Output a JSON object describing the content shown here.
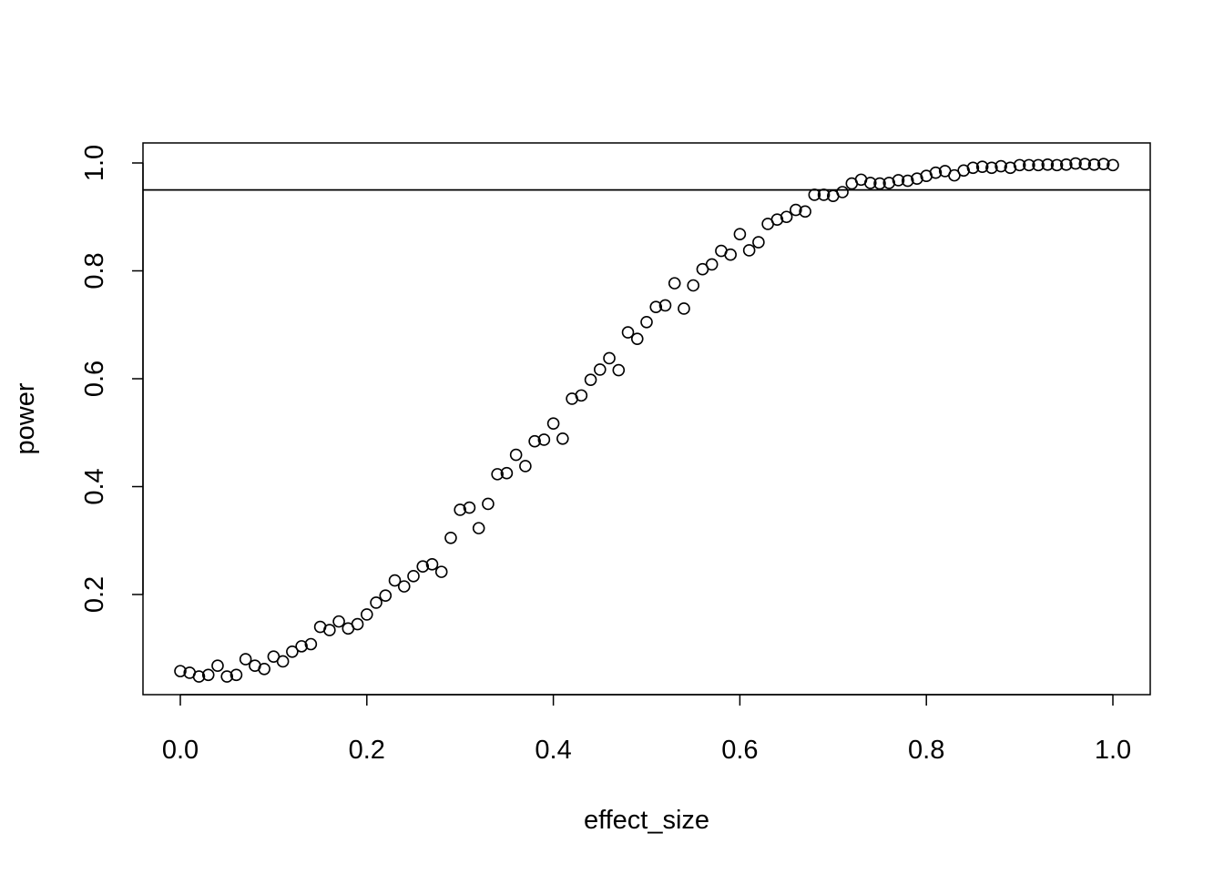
{
  "chart_data": {
    "type": "scatter",
    "title": "",
    "xlabel": "effect_size",
    "ylabel": "power",
    "xlim": [
      0.0,
      1.0
    ],
    "ylim": [
      0.0,
      1.0
    ],
    "x_ticks": [
      "0.0",
      "0.2",
      "0.4",
      "0.6",
      "0.8",
      "1.0"
    ],
    "y_ticks": [
      "0.2",
      "0.4",
      "0.6",
      "0.8",
      "1.0"
    ],
    "grid": false,
    "legend": "none",
    "marker": "open-circle",
    "reference_line": {
      "orientation": "horizontal",
      "y": 0.95
    },
    "x": [
      0.0,
      0.01,
      0.02,
      0.03,
      0.04,
      0.05,
      0.06,
      0.07,
      0.08,
      0.09,
      0.1,
      0.11,
      0.12,
      0.13,
      0.14,
      0.15,
      0.16,
      0.17,
      0.18,
      0.19,
      0.2,
      0.21,
      0.22,
      0.23,
      0.24,
      0.25,
      0.26,
      0.27,
      0.28,
      0.29,
      0.3,
      0.31,
      0.32,
      0.33,
      0.34,
      0.35,
      0.36,
      0.37,
      0.38,
      0.39,
      0.4,
      0.41,
      0.42,
      0.43,
      0.44,
      0.45,
      0.46,
      0.47,
      0.48,
      0.49,
      0.5,
      0.51,
      0.52,
      0.53,
      0.54,
      0.55,
      0.56,
      0.57,
      0.58,
      0.59,
      0.6,
      0.61,
      0.62,
      0.63,
      0.64,
      0.65,
      0.66,
      0.67,
      0.68,
      0.69,
      0.7,
      0.71,
      0.72,
      0.73,
      0.74,
      0.75,
      0.76,
      0.77,
      0.78,
      0.79,
      0.8,
      0.81,
      0.82,
      0.83,
      0.84,
      0.85,
      0.86,
      0.87,
      0.88,
      0.89,
      0.9,
      0.91,
      0.92,
      0.93,
      0.94,
      0.95,
      0.96,
      0.97,
      0.98,
      0.99,
      1.0
    ],
    "y": [
      0.058,
      0.055,
      0.048,
      0.051,
      0.068,
      0.048,
      0.051,
      0.08,
      0.068,
      0.062,
      0.085,
      0.076,
      0.094,
      0.104,
      0.108,
      0.14,
      0.134,
      0.15,
      0.137,
      0.145,
      0.163,
      0.185,
      0.198,
      0.226,
      0.215,
      0.234,
      0.252,
      0.256,
      0.242,
      0.305,
      0.357,
      0.361,
      0.323,
      0.368,
      0.423,
      0.425,
      0.459,
      0.438,
      0.484,
      0.487,
      0.517,
      0.489,
      0.563,
      0.569,
      0.598,
      0.617,
      0.638,
      0.616,
      0.686,
      0.674,
      0.705,
      0.733,
      0.736,
      0.777,
      0.73,
      0.773,
      0.803,
      0.812,
      0.837,
      0.83,
      0.868,
      0.838,
      0.853,
      0.887,
      0.895,
      0.9,
      0.913,
      0.91,
      0.941,
      0.941,
      0.939,
      0.946,
      0.962,
      0.969,
      0.963,
      0.962,
      0.963,
      0.968,
      0.967,
      0.971,
      0.976,
      0.982,
      0.985,
      0.977,
      0.986,
      0.991,
      0.993,
      0.991,
      0.994,
      0.991,
      0.996,
      0.996,
      0.996,
      0.997,
      0.996,
      0.997,
      0.999,
      0.998,
      0.997,
      0.998,
      0.996
    ]
  }
}
